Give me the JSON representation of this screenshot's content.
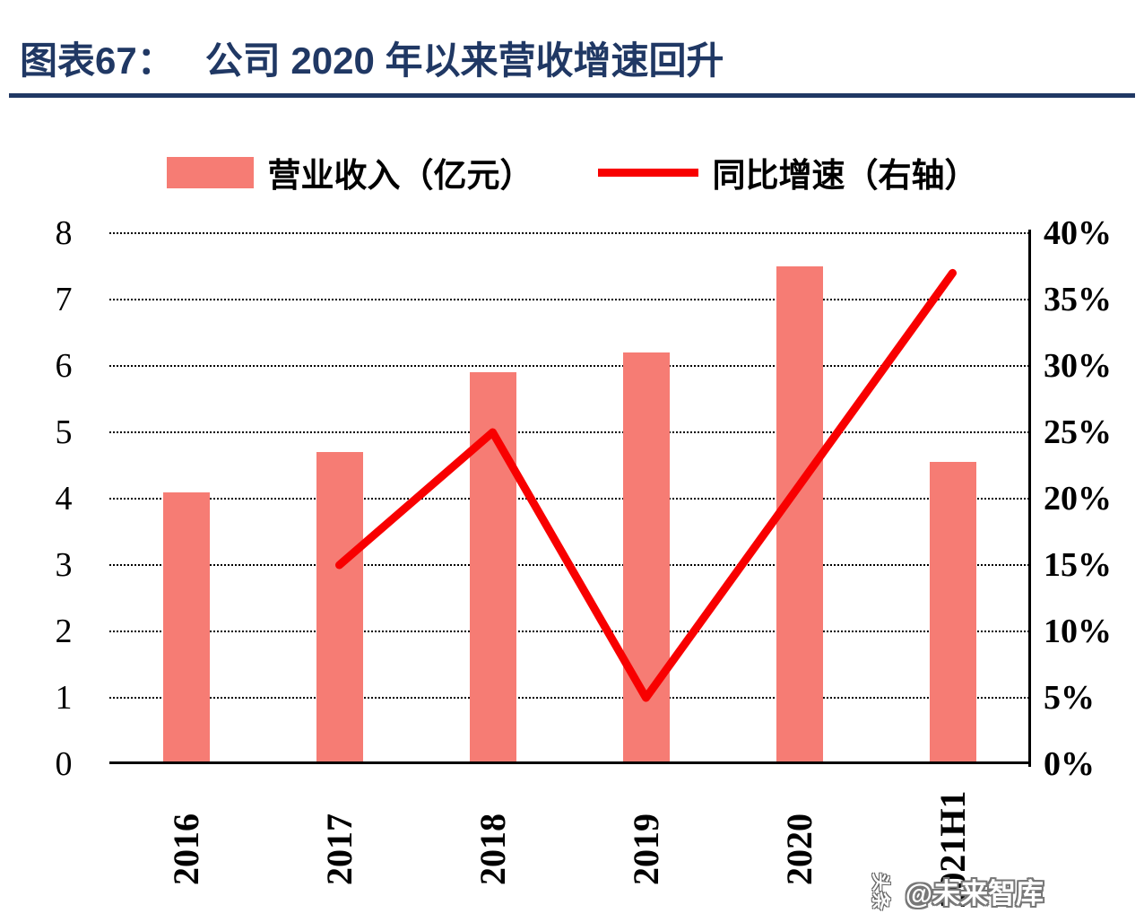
{
  "figure_label": "图表67：",
  "watermark": {
    "vertical": "头条",
    "handle": "@未来智库"
  },
  "colors": {
    "bar": "#F67C74",
    "line": "#F80000",
    "title": "#203864",
    "axis": "#000000",
    "grid": "#000000"
  },
  "chart_data": {
    "type": "bar",
    "title": "公司 2020 年以来营收增速回升",
    "categories": [
      "2016",
      "2017",
      "2018",
      "2019",
      "2020",
      "2021H1"
    ],
    "series": [
      {
        "name": "营业收入（亿元）",
        "type": "bar",
        "axis": "left",
        "values": [
          4.1,
          4.7,
          5.9,
          6.2,
          7.5,
          4.55
        ]
      },
      {
        "name": "同比增速（右轴）",
        "type": "line",
        "axis": "right",
        "values": [
          null,
          15,
          25,
          5,
          21,
          37
        ],
        "unit": "%"
      }
    ],
    "left_axis": {
      "min": 0,
      "max": 8,
      "step": 1,
      "ticks": [
        "0",
        "1",
        "2",
        "3",
        "4",
        "5",
        "6",
        "7",
        "8"
      ]
    },
    "right_axis": {
      "min": 0,
      "max": 40,
      "step": 5,
      "ticks": [
        "0%",
        "5%",
        "10%",
        "15%",
        "20%",
        "25%",
        "30%",
        "35%",
        "40%"
      ]
    },
    "grid": "horizontal-dotted",
    "legend_position": "top"
  }
}
